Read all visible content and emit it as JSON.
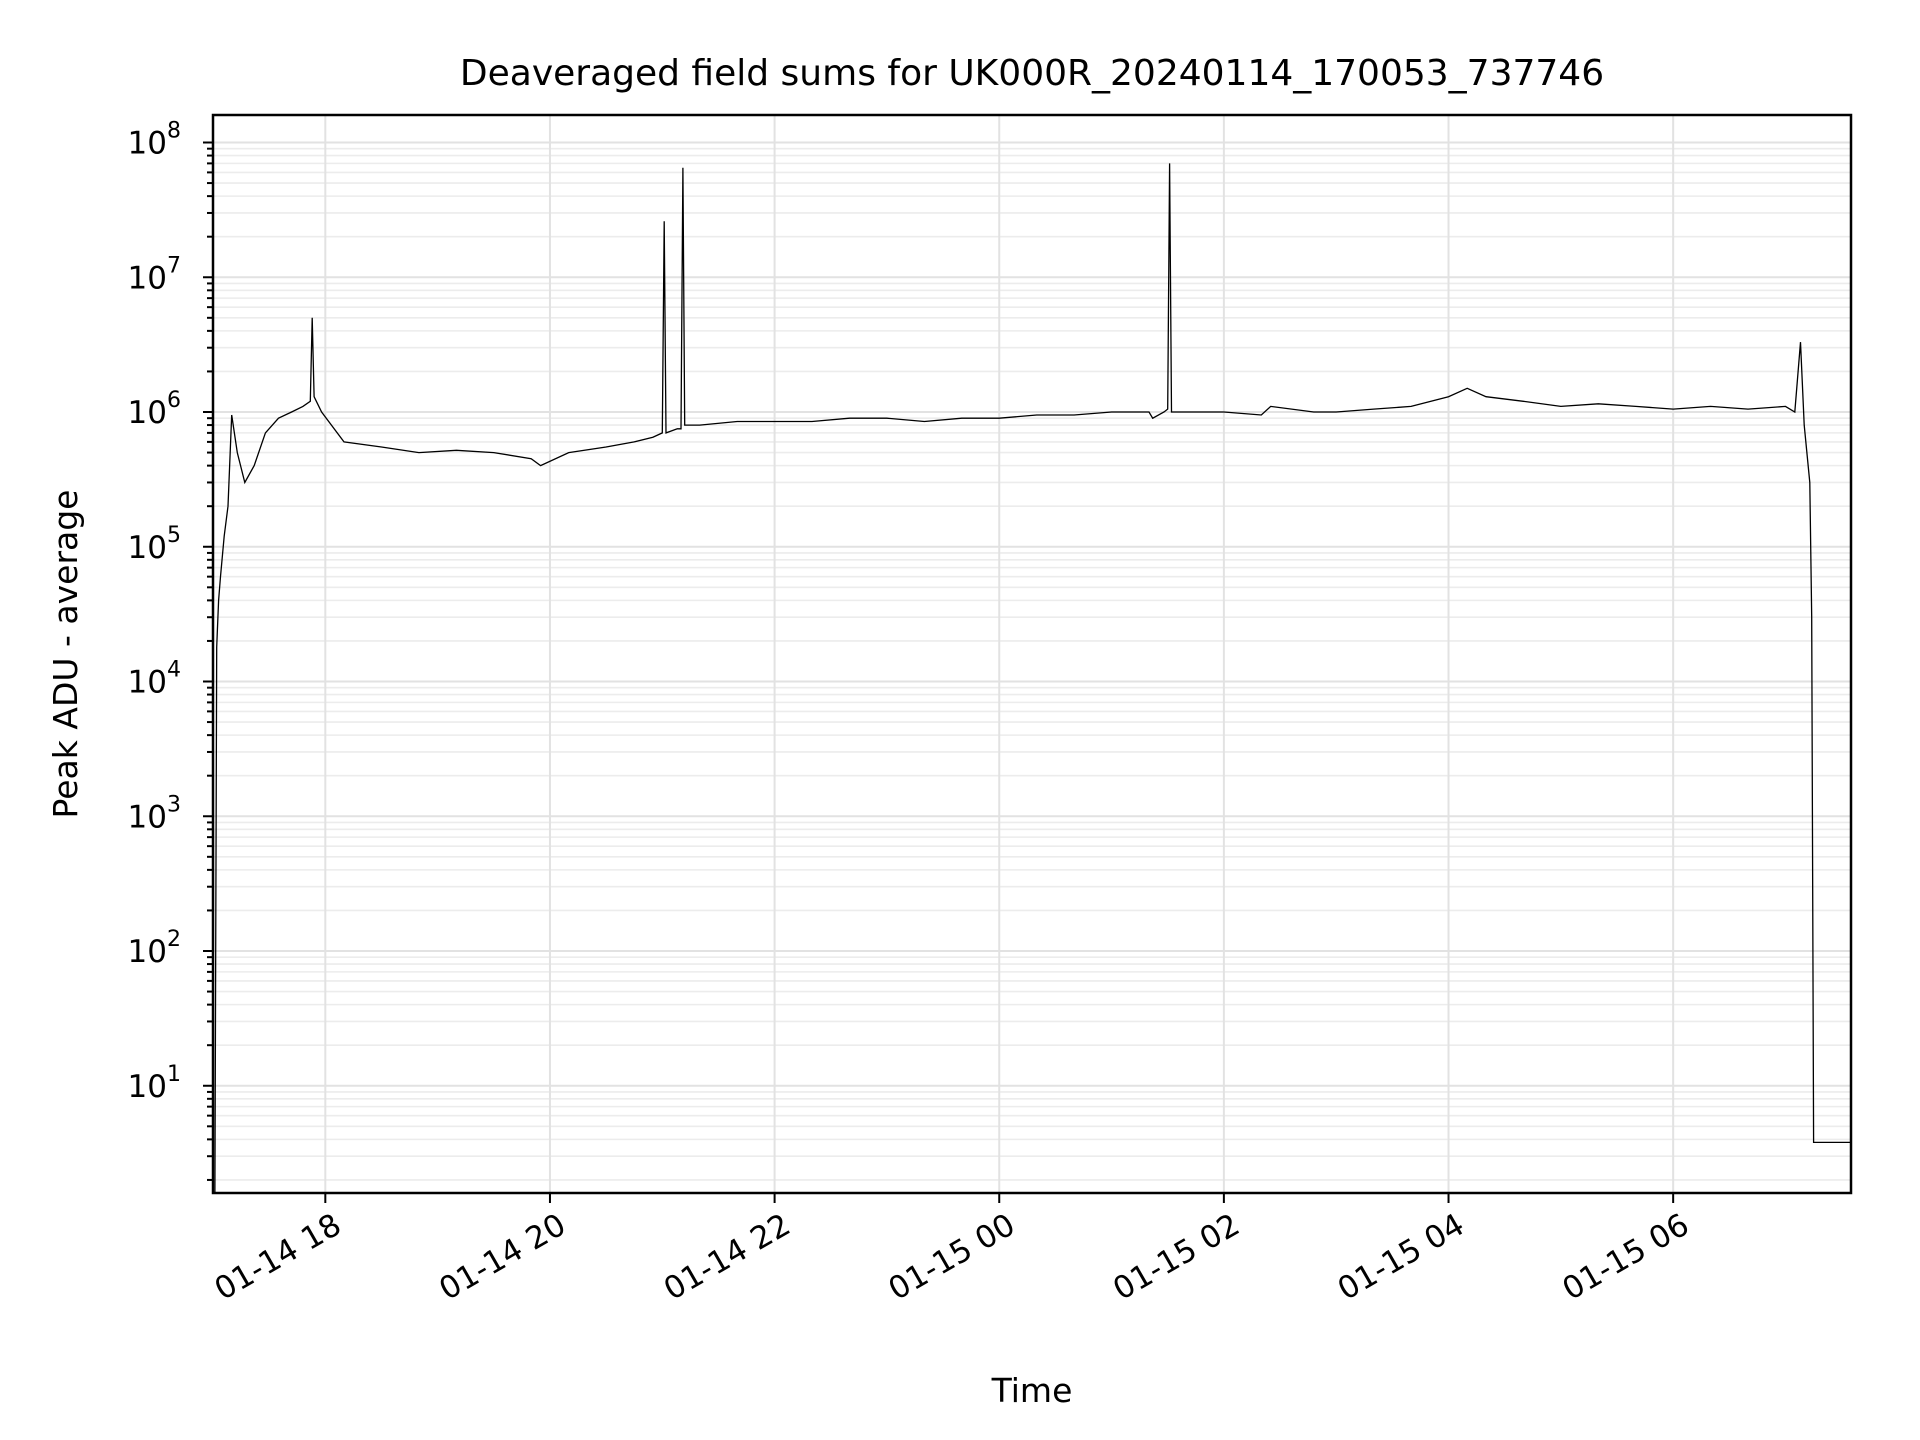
{
  "chart_data": {
    "type": "line",
    "title": "Deaveraged field sums for UK000R_20240114_170053_737746",
    "xlabel": "Time",
    "ylabel": "Peak ADU - average",
    "yscale": "log",
    "grid": true,
    "grid_minor": true,
    "xlim": [
      "2024-01-14 17:00",
      "2024-01-15 07:35"
    ],
    "ylim": [
      1.6,
      160000000
    ],
    "x_ticks": [
      {
        "value": "2024-01-14 18:00",
        "label": "01-14 18"
      },
      {
        "value": "2024-01-14 20:00",
        "label": "01-14 20"
      },
      {
        "value": "2024-01-14 22:00",
        "label": "01-14 22"
      },
      {
        "value": "2024-01-15 00:00",
        "label": "01-15 00"
      },
      {
        "value": "2024-01-15 02:00",
        "label": "01-15 02"
      },
      {
        "value": "2024-01-15 04:00",
        "label": "01-15 04"
      },
      {
        "value": "2024-01-15 06:00",
        "label": "01-15 06"
      }
    ],
    "y_ticks": [
      {
        "value": 10,
        "base": "10",
        "exp": "1"
      },
      {
        "value": 100,
        "base": "10",
        "exp": "2"
      },
      {
        "value": 1000,
        "base": "10",
        "exp": "3"
      },
      {
        "value": 10000,
        "base": "10",
        "exp": "4"
      },
      {
        "value": 100000,
        "base": "10",
        "exp": "5"
      },
      {
        "value": 1000000,
        "base": "10",
        "exp": "6"
      },
      {
        "value": 10000000,
        "base": "10",
        "exp": "7"
      },
      {
        "value": 100000000,
        "base": "10",
        "exp": "8"
      }
    ],
    "series": [
      {
        "color": "#000000",
        "x": [
          "2024-01-14 17:01",
          "2024-01-14 17:02",
          "2024-01-14 17:03",
          "2024-01-14 17:04",
          "2024-01-14 17:06",
          "2024-01-14 17:08",
          "2024-01-14 17:10",
          "2024-01-14 17:13",
          "2024-01-14 17:17",
          "2024-01-14 17:22",
          "2024-01-14 17:28",
          "2024-01-14 17:35",
          "2024-01-14 17:42",
          "2024-01-14 17:48",
          "2024-01-14 17:52",
          "2024-01-14 17:53",
          "2024-01-14 17:54",
          "2024-01-14 17:58",
          "2024-01-14 18:10",
          "2024-01-14 18:30",
          "2024-01-14 18:50",
          "2024-01-14 19:10",
          "2024-01-14 19:30",
          "2024-01-14 19:50",
          "2024-01-14 19:55",
          "2024-01-14 20:10",
          "2024-01-14 20:30",
          "2024-01-14 20:45",
          "2024-01-14 20:55",
          "2024-01-14 21:00",
          "2024-01-14 21:01",
          "2024-01-14 21:02",
          "2024-01-14 21:08",
          "2024-01-14 21:10",
          "2024-01-14 21:11",
          "2024-01-14 21:12",
          "2024-01-14 21:20",
          "2024-01-14 21:40",
          "2024-01-14 22:00",
          "2024-01-14 22:20",
          "2024-01-14 22:40",
          "2024-01-14 23:00",
          "2024-01-14 23:20",
          "2024-01-14 23:40",
          "2024-01-15 00:00",
          "2024-01-15 00:20",
          "2024-01-15 00:40",
          "2024-01-15 01:00",
          "2024-01-15 01:20",
          "2024-01-15 01:22",
          "2024-01-15 01:28",
          "2024-01-15 01:30",
          "2024-01-15 01:31",
          "2024-01-15 01:32",
          "2024-01-15 01:40",
          "2024-01-15 02:00",
          "2024-01-15 02:20",
          "2024-01-15 02:25",
          "2024-01-15 02:48",
          "2024-01-15 03:00",
          "2024-01-15 03:20",
          "2024-01-15 03:40",
          "2024-01-15 04:00",
          "2024-01-15 04:10",
          "2024-01-15 04:20",
          "2024-01-15 04:40",
          "2024-01-15 05:00",
          "2024-01-15 05:20",
          "2024-01-15 05:40",
          "2024-01-15 06:00",
          "2024-01-15 06:20",
          "2024-01-15 06:40",
          "2024-01-15 07:00",
          "2024-01-15 07:05",
          "2024-01-15 07:08",
          "2024-01-15 07:10",
          "2024-01-15 07:13",
          "2024-01-15 07:14",
          "2024-01-15 07:15",
          "2024-01-15 07:20",
          "2024-01-15 07:25",
          "2024-01-15 07:30",
          "2024-01-15 07:35"
        ],
        "y": [
          1.6,
          18000,
          40000,
          60000,
          120000,
          200000,
          950000,
          500000,
          300000,
          400000,
          700000,
          900000,
          1000000,
          1100000,
          1200000,
          5000000,
          1300000,
          1000000,
          600000,
          550000,
          500000,
          520000,
          500000,
          450000,
          400000,
          500000,
          550000,
          600000,
          650000,
          700000,
          26000000,
          700000,
          750000,
          750000,
          65000000,
          800000,
          800000,
          850000,
          850000,
          850000,
          900000,
          900000,
          850000,
          900000,
          900000,
          950000,
          950000,
          1000000,
          1000000,
          900000,
          1000000,
          1050000,
          70000000,
          1000000,
          1000000,
          1000000,
          950000,
          1100000,
          1000000,
          1000000,
          1050000,
          1100000,
          1300000,
          1500000,
          1300000,
          1200000,
          1100000,
          1150000,
          1100000,
          1050000,
          1100000,
          1050000,
          1100000,
          1000000,
          3300000,
          800000,
          300000,
          30000,
          3.8,
          3.8,
          3.8,
          3.8,
          3.8
        ]
      }
    ]
  }
}
